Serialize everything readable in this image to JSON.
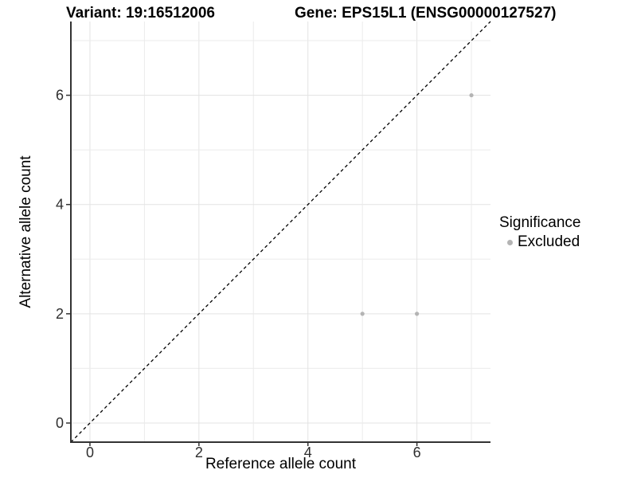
{
  "chart_data": {
    "type": "scatter",
    "titles": {
      "left": "Variant: 19:16512006",
      "right": "Gene: EPS15L1 (ENSG00000127527)"
    },
    "xlabel": "Reference allele count",
    "ylabel": "Alternative allele count",
    "xlim": [
      -0.35,
      7.35
    ],
    "ylim": [
      -0.35,
      7.35
    ],
    "x_ticks": [
      0,
      2,
      4,
      6
    ],
    "y_ticks": [
      0,
      2,
      4,
      6
    ],
    "grid_values": [
      0,
      1,
      2,
      3,
      4,
      5,
      6,
      7
    ],
    "identity_line": {
      "style": "dashed",
      "color": "#000000",
      "from": [
        -0.35,
        -0.35
      ],
      "to": [
        7.35,
        7.35
      ]
    },
    "series": [
      {
        "name": "Excluded",
        "color": "#b4b4b4",
        "points": [
          [
            5,
            2
          ],
          [
            6,
            2
          ],
          [
            7,
            6
          ]
        ]
      }
    ],
    "legend": {
      "title": "Significance",
      "position": "right",
      "items": [
        {
          "label": "Excluded",
          "color": "#b4b4b4"
        }
      ]
    },
    "colors": {
      "background": "#ffffff",
      "gridline_major": "#e3e3e3",
      "gridline_minor": "#ebebeb",
      "axis_line": "#333333",
      "tick_label": "#2e2e2e",
      "point": "#b4b4b4"
    }
  }
}
